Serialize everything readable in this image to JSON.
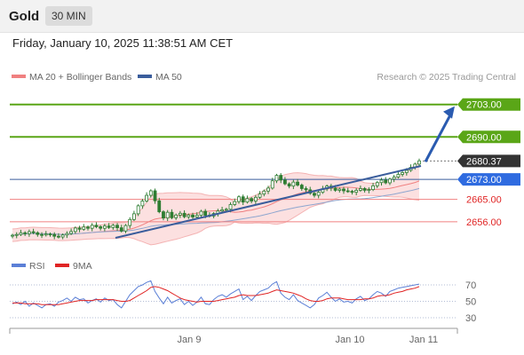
{
  "header": {
    "symbol": "Gold",
    "timeframe": "30 MIN",
    "datetime": "Friday, January 10, 2025 11:38:51 AM CET"
  },
  "legend": {
    "bollinger_label": "MA 20 + Bollinger Bands",
    "ma50_label": "MA 50",
    "credit": "Research © 2025 Trading Central",
    "rsi_label": "RSI",
    "rsi_ma_label": "9MA"
  },
  "colors": {
    "bollinger": "#f08080",
    "band_fill": "#fbdada",
    "ma50": "#3a5d9c",
    "green_level": "#5aa617",
    "blue_level": "#3a5d9c",
    "red_level": "#f08080",
    "red_text": "#e02424",
    "current": "#333333",
    "arrow": "#2a5bb0",
    "rsi": "#5b7fd6",
    "rsi_ma": "#e02424",
    "candle": "#2e7d32"
  },
  "chart_data": [
    {
      "type": "candlestick",
      "x_ticks": [
        "Jan 9",
        "Jan 10",
        "Jan 11"
      ],
      "levels": [
        {
          "value": 2703.0,
          "label": "2703.00",
          "style": "green"
        },
        {
          "value": 2690.0,
          "label": "2690.00",
          "style": "green"
        },
        {
          "value": 2680.37,
          "label": "2680.37",
          "style": "current"
        },
        {
          "value": 2673.0,
          "label": "2673.00",
          "style": "blue"
        },
        {
          "value": 2665.0,
          "label": "2665.00",
          "style": "red"
        },
        {
          "value": 2656.0,
          "label": "2656.00",
          "style": "red"
        }
      ],
      "closes": [
        2650.6,
        2650.9,
        2651.6,
        2651.2,
        2652.0,
        2651.6,
        2650.9,
        2650.7,
        2651.1,
        2650.9,
        2650.2,
        2649.9,
        2650.7,
        2651.3,
        2652.1,
        2653.5,
        2653.0,
        2653.9,
        2653.4,
        2654.6,
        2654.0,
        2653.4,
        2654.3,
        2653.7,
        2654.6,
        2653.6,
        2652.3,
        2654.5,
        2656.9,
        2659.2,
        2662.4,
        2664.3,
        2666.6,
        2668.4,
        2664.4,
        2660.0,
        2657.5,
        2659.8,
        2657.6,
        2658.7,
        2659.4,
        2658.0,
        2658.7,
        2657.9,
        2658.6,
        2660.2,
        2658.6,
        2658.3,
        2659.3,
        2660.3,
        2660.8,
        2661.0,
        2662.9,
        2664.1,
        2666.0,
        2663.9,
        2665.3,
        2664.3,
        2665.8,
        2667.1,
        2668.3,
        2669.5,
        2672.4,
        2674.6,
        2672.7,
        2671.2,
        2670.3,
        2671.9,
        2670.7,
        2669.3,
        2668.8,
        2667.4,
        2666.6,
        2667.8,
        2669.2,
        2670.3,
        2669.5,
        2668.6,
        2669.1,
        2668.4,
        2668.2,
        2667.8,
        2668.6,
        2669.3,
        2668.6,
        2668.9,
        2670.4,
        2671.7,
        2672.7,
        2671.6,
        2673.1,
        2673.9,
        2675.0,
        2675.7,
        2676.6,
        2677.8,
        2679.1,
        2680.4
      ],
      "price_range": [
        2646,
        2710
      ],
      "bollinger": {
        "middle_line": true,
        "bands_filled": true
      },
      "ma50": true,
      "support_trendline": true,
      "projection_arrow": "up to 2703.00"
    },
    {
      "type": "line",
      "name": "RSI",
      "ylim": [
        20,
        80
      ],
      "y_ticks": [
        70,
        50,
        30
      ],
      "series": [
        {
          "name": "RSI",
          "values": [
            47,
            49,
            46,
            50,
            44,
            48,
            45,
            42,
            46,
            47,
            44,
            49,
            51,
            54,
            50,
            55,
            52,
            53,
            48,
            51,
            53,
            49,
            54,
            51,
            52,
            46,
            42,
            50,
            58,
            63,
            68,
            70,
            73,
            75,
            62,
            54,
            47,
            55,
            48,
            51,
            53,
            46,
            50,
            45,
            49,
            55,
            47,
            46,
            52,
            56,
            58,
            55,
            59,
            62,
            65,
            52,
            56,
            51,
            57,
            62,
            64,
            66,
            71,
            74,
            60,
            55,
            52,
            58,
            51,
            48,
            45,
            42,
            46,
            54,
            57,
            61,
            55,
            50,
            53,
            49,
            50,
            48,
            53,
            56,
            51,
            53,
            58,
            62,
            60,
            56,
            62,
            64,
            66,
            67,
            68,
            69,
            70,
            71
          ]
        },
        {
          "name": "9MA",
          "values": [
            48,
            48,
            48,
            47,
            47,
            47,
            47,
            46,
            46,
            46,
            46,
            46,
            47,
            48,
            49,
            50,
            51,
            51,
            51,
            51,
            52,
            52,
            52,
            52,
            52,
            51,
            50,
            50,
            51,
            54,
            57,
            60,
            63,
            67,
            68,
            67,
            65,
            63,
            60,
            57,
            54,
            52,
            51,
            50,
            49,
            50,
            50,
            50,
            50,
            51,
            52,
            53,
            54,
            55,
            57,
            58,
            57,
            57,
            57,
            58,
            59,
            60,
            62,
            64,
            63,
            62,
            61,
            60,
            58,
            56,
            53,
            51,
            50,
            50,
            51,
            53,
            54,
            54,
            54,
            53,
            52,
            52,
            52,
            52,
            53,
            53,
            54,
            56,
            57,
            57,
            58,
            60,
            61,
            62,
            64,
            65,
            66,
            68
          ]
        }
      ]
    }
  ]
}
